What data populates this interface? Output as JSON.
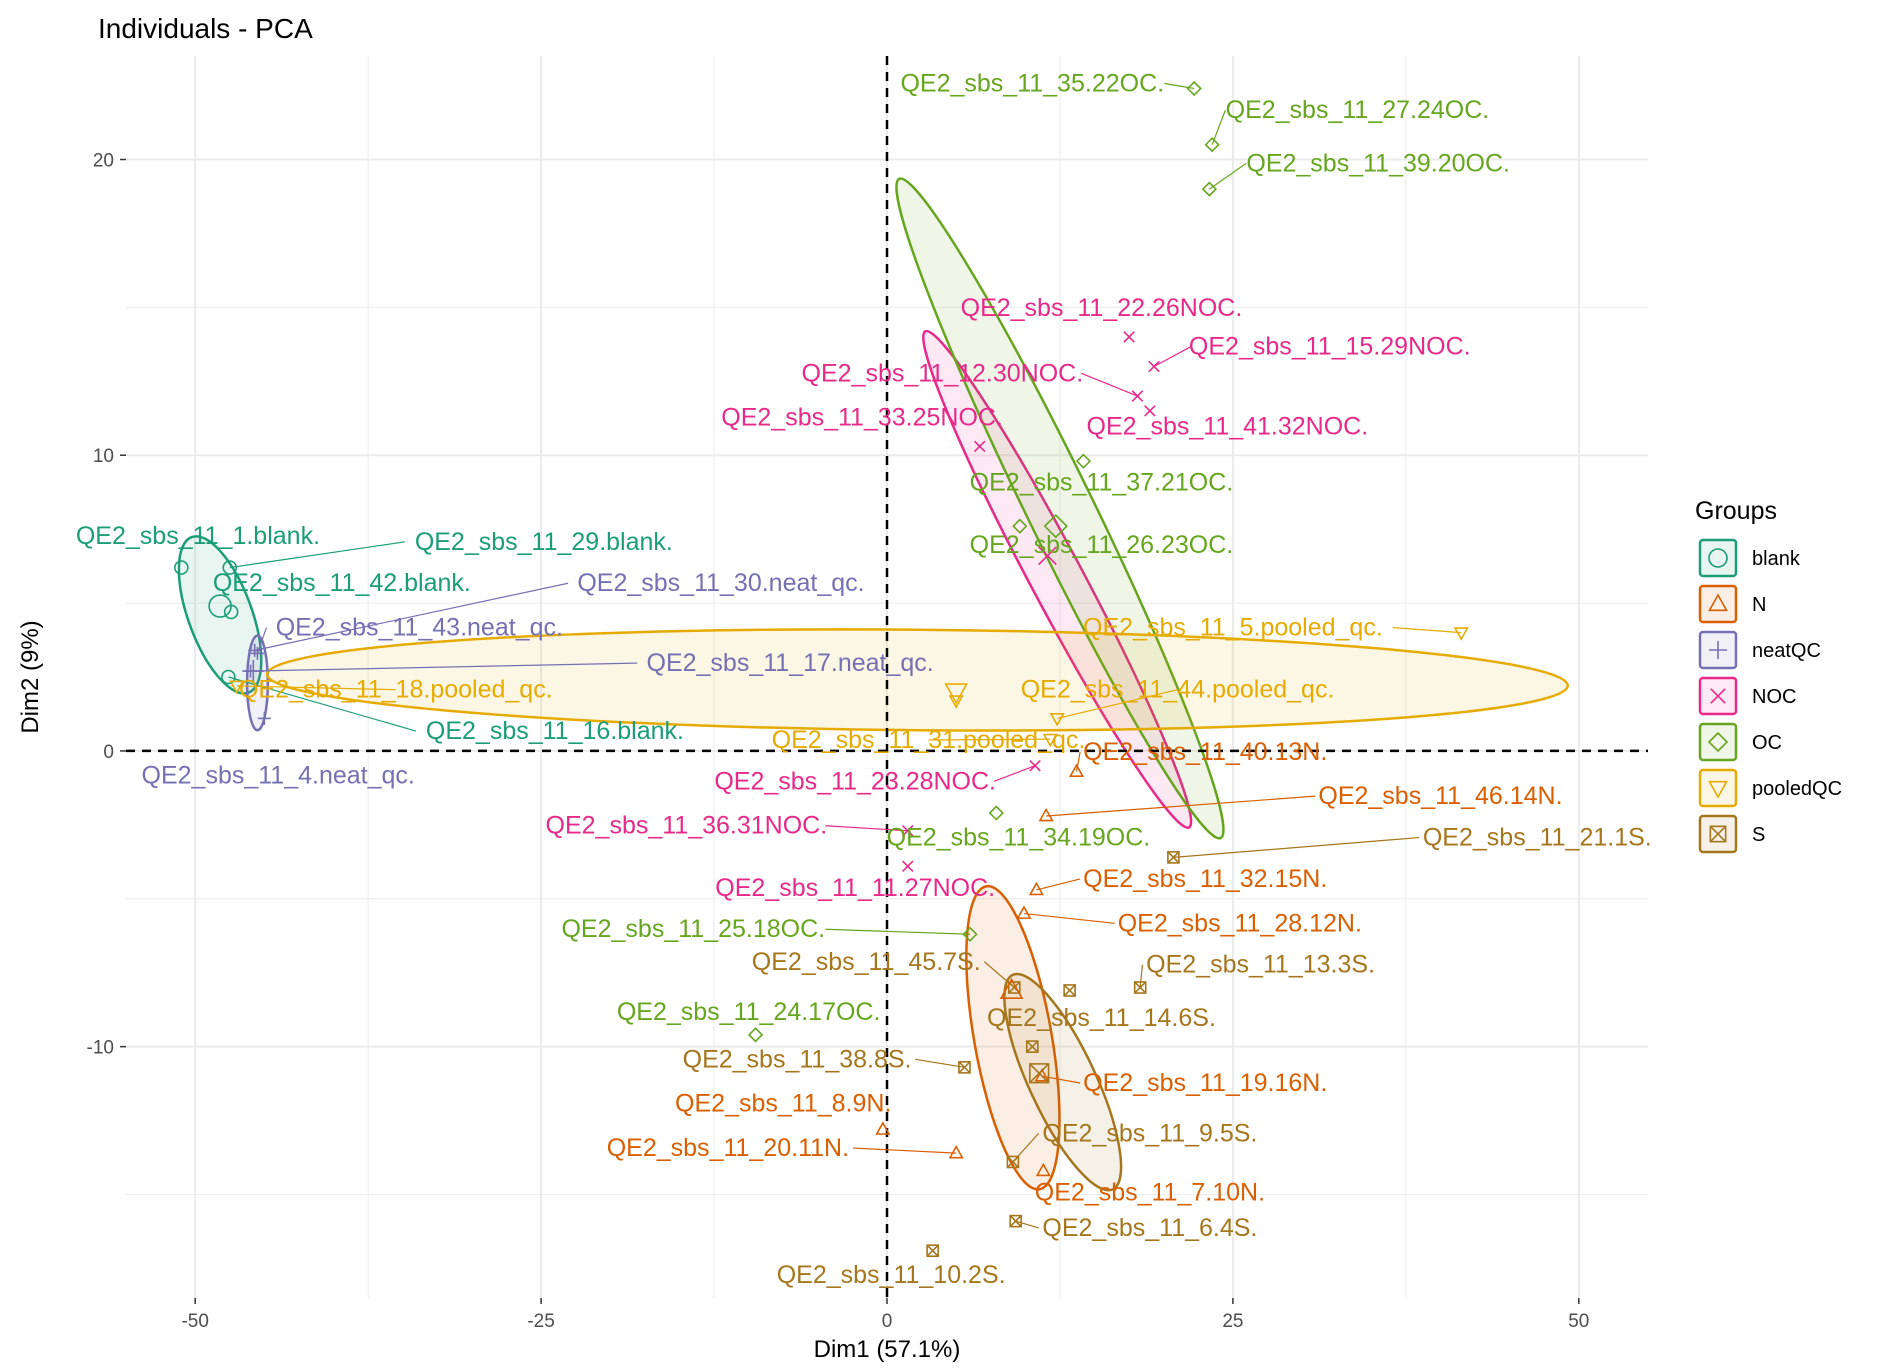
{
  "chart_data": {
    "type": "scatter",
    "title": "Individuals - PCA",
    "xlabel": "Dim1 (57.1%)",
    "ylabel": "Dim2 (9%)",
    "xlim": [
      -55,
      55
    ],
    "ylim": [
      -18.5,
      23.5
    ],
    "xticks": [
      -50,
      -25,
      0,
      25,
      50
    ],
    "xtick_labels": [
      "-50",
      "-25",
      "0",
      "25",
      "50"
    ],
    "yticks": [
      -10,
      0,
      10,
      20
    ],
    "ytick_labels": [
      "-10",
      "0",
      "10",
      "20"
    ],
    "grid": true,
    "reference_lines": {
      "x": 0,
      "y": 0,
      "style": "dashed"
    },
    "legend": {
      "title": "Groups",
      "position": "right"
    },
    "groups": [
      {
        "name": "blank",
        "color": "#1b9e77",
        "shape": "circle",
        "centroid": [
          -48.2,
          4.9
        ],
        "ellipse": {
          "cx": -48.2,
          "cy": 4.6,
          "rx": 2.3,
          "ry": 2.8,
          "angle": 20
        }
      },
      {
        "name": "N",
        "color": "#d95f02",
        "shape": "triangle-up",
        "centroid": [
          9.0,
          -8.1
        ],
        "ellipse": {
          "cx": 9.1,
          "cy": -9.7,
          "rx": 2.8,
          "ry": 5.2,
          "angle": 10
        }
      },
      {
        "name": "neatQC",
        "color": "#7570b3",
        "shape": "plus",
        "centroid": [
          -45.8,
          2.7
        ],
        "ellipse": {
          "cx": -45.5,
          "cy": 2.3,
          "rx": 0.75,
          "ry": 1.6,
          "angle": 0
        }
      },
      {
        "name": "NOC",
        "color": "#e7298a",
        "shape": "cross",
        "centroid": [
          11.6,
          6.6
        ],
        "ellipse": {
          "cx": 12.3,
          "cy": 5.8,
          "rx": 1.9,
          "ry": 9.5,
          "angle": 28
        }
      },
      {
        "name": "OC",
        "color": "#66a61e",
        "shape": "diamond",
        "centroid": [
          12.2,
          7.6
        ],
        "ellipse": {
          "cx": 12.5,
          "cy": 8.2,
          "rx": 2.4,
          "ry": 12.4,
          "angle": 26
        }
      },
      {
        "name": "pooledQC",
        "color": "#e6ab02",
        "shape": "triangle-down",
        "centroid": [
          5.0,
          2.0
        ],
        "ellipse": {
          "cx": 2.2,
          "cy": 2.4,
          "rx": 47.0,
          "ry": 1.7,
          "angle": -0.5
        }
      },
      {
        "name": "S",
        "color": "#a6761d",
        "shape": "boxX",
        "centroid": [
          11.0,
          -10.9
        ],
        "ellipse": {
          "cx": 12.7,
          "cy": -11.2,
          "rx": 2.4,
          "ry": 4.0,
          "angle": 25
        }
      }
    ],
    "points": [
      {
        "g": "blank",
        "label": "QE2_sbs_11_1.blank.",
        "x": -51.0,
        "y": 6.2,
        "lx": -49.8,
        "ly": 7.0
      },
      {
        "g": "blank",
        "label": "QE2_sbs_11_29.blank.",
        "x": -47.5,
        "y": 6.2,
        "lx": -24.8,
        "ly": 6.8
      },
      {
        "g": "blank",
        "label": "QE2_sbs_11_42.blank.",
        "x": -47.4,
        "y": 4.7,
        "lx": -39.4,
        "ly": 5.4
      },
      {
        "g": "blank",
        "label": "QE2_sbs_11_16.blank.",
        "x": -47.6,
        "y": 2.5,
        "lx": -24.0,
        "ly": 0.4
      },
      {
        "g": "N",
        "label": "QE2_sbs_11_40.13N.",
        "x": 13.7,
        "y": -0.7,
        "lx": 23.0,
        "ly": -0.3
      },
      {
        "g": "N",
        "label": "QE2_sbs_11_46.14N.",
        "x": 11.5,
        "y": -2.2,
        "lx": 40.0,
        "ly": -1.8
      },
      {
        "g": "N",
        "label": "QE2_sbs_11_32.15N.",
        "x": 10.8,
        "y": -4.7,
        "lx": 23.0,
        "ly": -4.6
      },
      {
        "g": "N",
        "label": "QE2_sbs_11_28.12N.",
        "x": 9.9,
        "y": -5.5,
        "lx": 25.5,
        "ly": -6.1
      },
      {
        "g": "N",
        "label": "QE2_sbs_11_19.16N.",
        "x": 11.2,
        "y": -11.0,
        "lx": 23.0,
        "ly": -11.5
      },
      {
        "g": "N",
        "label": "QE2_sbs_11_8.9N.",
        "x": -0.3,
        "y": -12.8,
        "lx": -7.5,
        "ly": -12.2
      },
      {
        "g": "N",
        "label": "QE2_sbs_11_20.11N.",
        "x": 5.0,
        "y": -13.6,
        "lx": -11.5,
        "ly": -13.7
      },
      {
        "g": "N",
        "label": "QE2_sbs_11_7.10N.",
        "x": 11.3,
        "y": -14.2,
        "lx": 19.0,
        "ly": -15.2
      },
      {
        "g": "neatQC",
        "label": "QE2_sbs_11_30.neat_qc.",
        "x": -45.7,
        "y": 3.4,
        "lx": -12.0,
        "ly": 5.4
      },
      {
        "g": "neatQC",
        "label": "QE2_sbs_11_43.neat_qc.",
        "x": -45.5,
        "y": 3.3,
        "lx": -33.8,
        "ly": 3.9
      },
      {
        "g": "neatQC",
        "label": "QE2_sbs_11_17.neat_qc.",
        "x": -46.0,
        "y": 2.7,
        "lx": -7.0,
        "ly": 2.7
      },
      {
        "g": "neatQC",
        "label": "QE2_sbs_11_4.neat_qc.",
        "x": -45.0,
        "y": 1.1,
        "lx": -44.0,
        "ly": -1.1
      },
      {
        "g": "NOC",
        "label": "QE2_sbs_11_22.26NOC.",
        "x": 17.5,
        "y": 14.0,
        "lx": 15.5,
        "ly": 14.7
      },
      {
        "g": "NOC",
        "label": "QE2_sbs_11_15.29NOC.",
        "x": 19.3,
        "y": 13.0,
        "lx": 32.0,
        "ly": 13.4
      },
      {
        "g": "NOC",
        "label": "QE2_sbs_11_12.30NOC.",
        "x": 18.1,
        "y": 12.0,
        "lx": 4.0,
        "ly": 12.5
      },
      {
        "g": "NOC",
        "label": "QE2_sbs_11_41.32NOC.",
        "x": 19.0,
        "y": 11.5,
        "lx": 24.6,
        "ly": 10.7
      },
      {
        "g": "NOC",
        "label": "QE2_sbs_11_33.25NOC.",
        "x": 6.7,
        "y": 10.3,
        "lx": -1.8,
        "ly": 11.0
      },
      {
        "g": "NOC",
        "label": "QE2_sbs_11_23.28NOC.",
        "x": 10.7,
        "y": -0.5,
        "lx": -2.3,
        "ly": -1.3
      },
      {
        "g": "NOC",
        "label": "QE2_sbs_11_36.31NOC.",
        "x": 1.5,
        "y": -2.7,
        "lx": -14.5,
        "ly": -2.8
      },
      {
        "g": "NOC",
        "label": "QE2_sbs_11_11.27NOC.",
        "x": 1.5,
        "y": -3.9,
        "lx": -2.3,
        "ly": -4.9
      },
      {
        "g": "OC",
        "label": "QE2_sbs_11_35.22OC.",
        "x": 22.2,
        "y": 22.4,
        "lx": 10.5,
        "ly": 22.3
      },
      {
        "g": "OC",
        "label": "QE2_sbs_11_27.24OC.",
        "x": 23.5,
        "y": 20.5,
        "lx": 34.0,
        "ly": 21.4
      },
      {
        "g": "OC",
        "label": "QE2_sbs_11_39.20OC.",
        "x": 23.3,
        "y": 19.0,
        "lx": 35.5,
        "ly": 19.6
      },
      {
        "g": "OC",
        "label": "QE2_sbs_11_37.21OC.",
        "x": 14.2,
        "y": 9.8,
        "lx": 15.5,
        "ly": 8.8
      },
      {
        "g": "OC",
        "label": "QE2_sbs_11_26.23OC.",
        "x": 9.6,
        "y": 7.6,
        "lx": 15.5,
        "ly": 6.7
      },
      {
        "g": "OC",
        "label": "QE2_sbs_11_34.19OC.",
        "x": 7.9,
        "y": -2.1,
        "lx": 9.5,
        "ly": -3.2
      },
      {
        "g": "OC",
        "label": "QE2_sbs_11_25.18OC.",
        "x": 6.0,
        "y": -6.2,
        "lx": -14.0,
        "ly": -6.3
      },
      {
        "g": "OC",
        "label": "QE2_sbs_11_24.17OC.",
        "x": -9.5,
        "y": -9.6,
        "lx": -10.0,
        "ly": -9.1
      },
      {
        "g": "pooledQC",
        "label": "QE2_sbs_11_5.pooled_qc.",
        "x": 41.5,
        "y": 4.0,
        "lx": 25.0,
        "ly": 3.9
      },
      {
        "g": "pooledQC",
        "label": "QE2_sbs_11_44.pooled_qc.",
        "x": 12.3,
        "y": 1.1,
        "lx": 21.0,
        "ly": 1.8
      },
      {
        "g": "pooledQC",
        "label": "QE2_sbs_11_18.pooled_qc.",
        "x": -47.0,
        "y": 2.2,
        "lx": -35.5,
        "ly": 1.8
      },
      {
        "g": "pooledQC",
        "label": "QE2_sbs_11_31.pooled_qc.",
        "x": 11.8,
        "y": 0.4,
        "lx": 3.0,
        "ly": 0.1
      },
      {
        "g": "pooledQC",
        "label": "",
        "x": 5.0,
        "y": 1.7,
        "lx": 0,
        "ly": 0
      },
      {
        "g": "S",
        "label": "QE2_sbs_11_21.1S.",
        "x": 20.7,
        "y": -3.6,
        "lx": 47.0,
        "ly": -3.2
      },
      {
        "g": "S",
        "label": "QE2_sbs_11_45.7S.",
        "x": 9.2,
        "y": -8.0,
        "lx": -1.5,
        "ly": -7.4
      },
      {
        "g": "S",
        "label": "QE2_sbs_11_13.3S.",
        "x": 18.3,
        "y": -8.0,
        "lx": 27.0,
        "ly": -7.5
      },
      {
        "g": "S",
        "label": "QE2_sbs_11_14.6S.",
        "x": 13.2,
        "y": -8.1,
        "lx": 15.5,
        "ly": -9.3
      },
      {
        "g": "S",
        "label": "QE2_sbs_11_38.8S.",
        "x": 5.6,
        "y": -10.7,
        "lx": -6.5,
        "ly": -10.7
      },
      {
        "g": "S",
        "label": "QE2_sbs_11_9.5S.",
        "x": 9.1,
        "y": -13.9,
        "lx": 19.0,
        "ly": -13.2
      },
      {
        "g": "S",
        "label": "QE2_sbs_11_6.4S.",
        "x": 9.3,
        "y": -15.9,
        "lx": 19.0,
        "ly": -16.4
      },
      {
        "g": "S",
        "label": "QE2_sbs_11_10.2S.",
        "x": 3.3,
        "y": -16.9,
        "lx": 0.3,
        "ly": -18.0
      },
      {
        "g": "S",
        "label": "",
        "x": 10.5,
        "y": -10.0,
        "lx": 0,
        "ly": 0
      }
    ]
  }
}
